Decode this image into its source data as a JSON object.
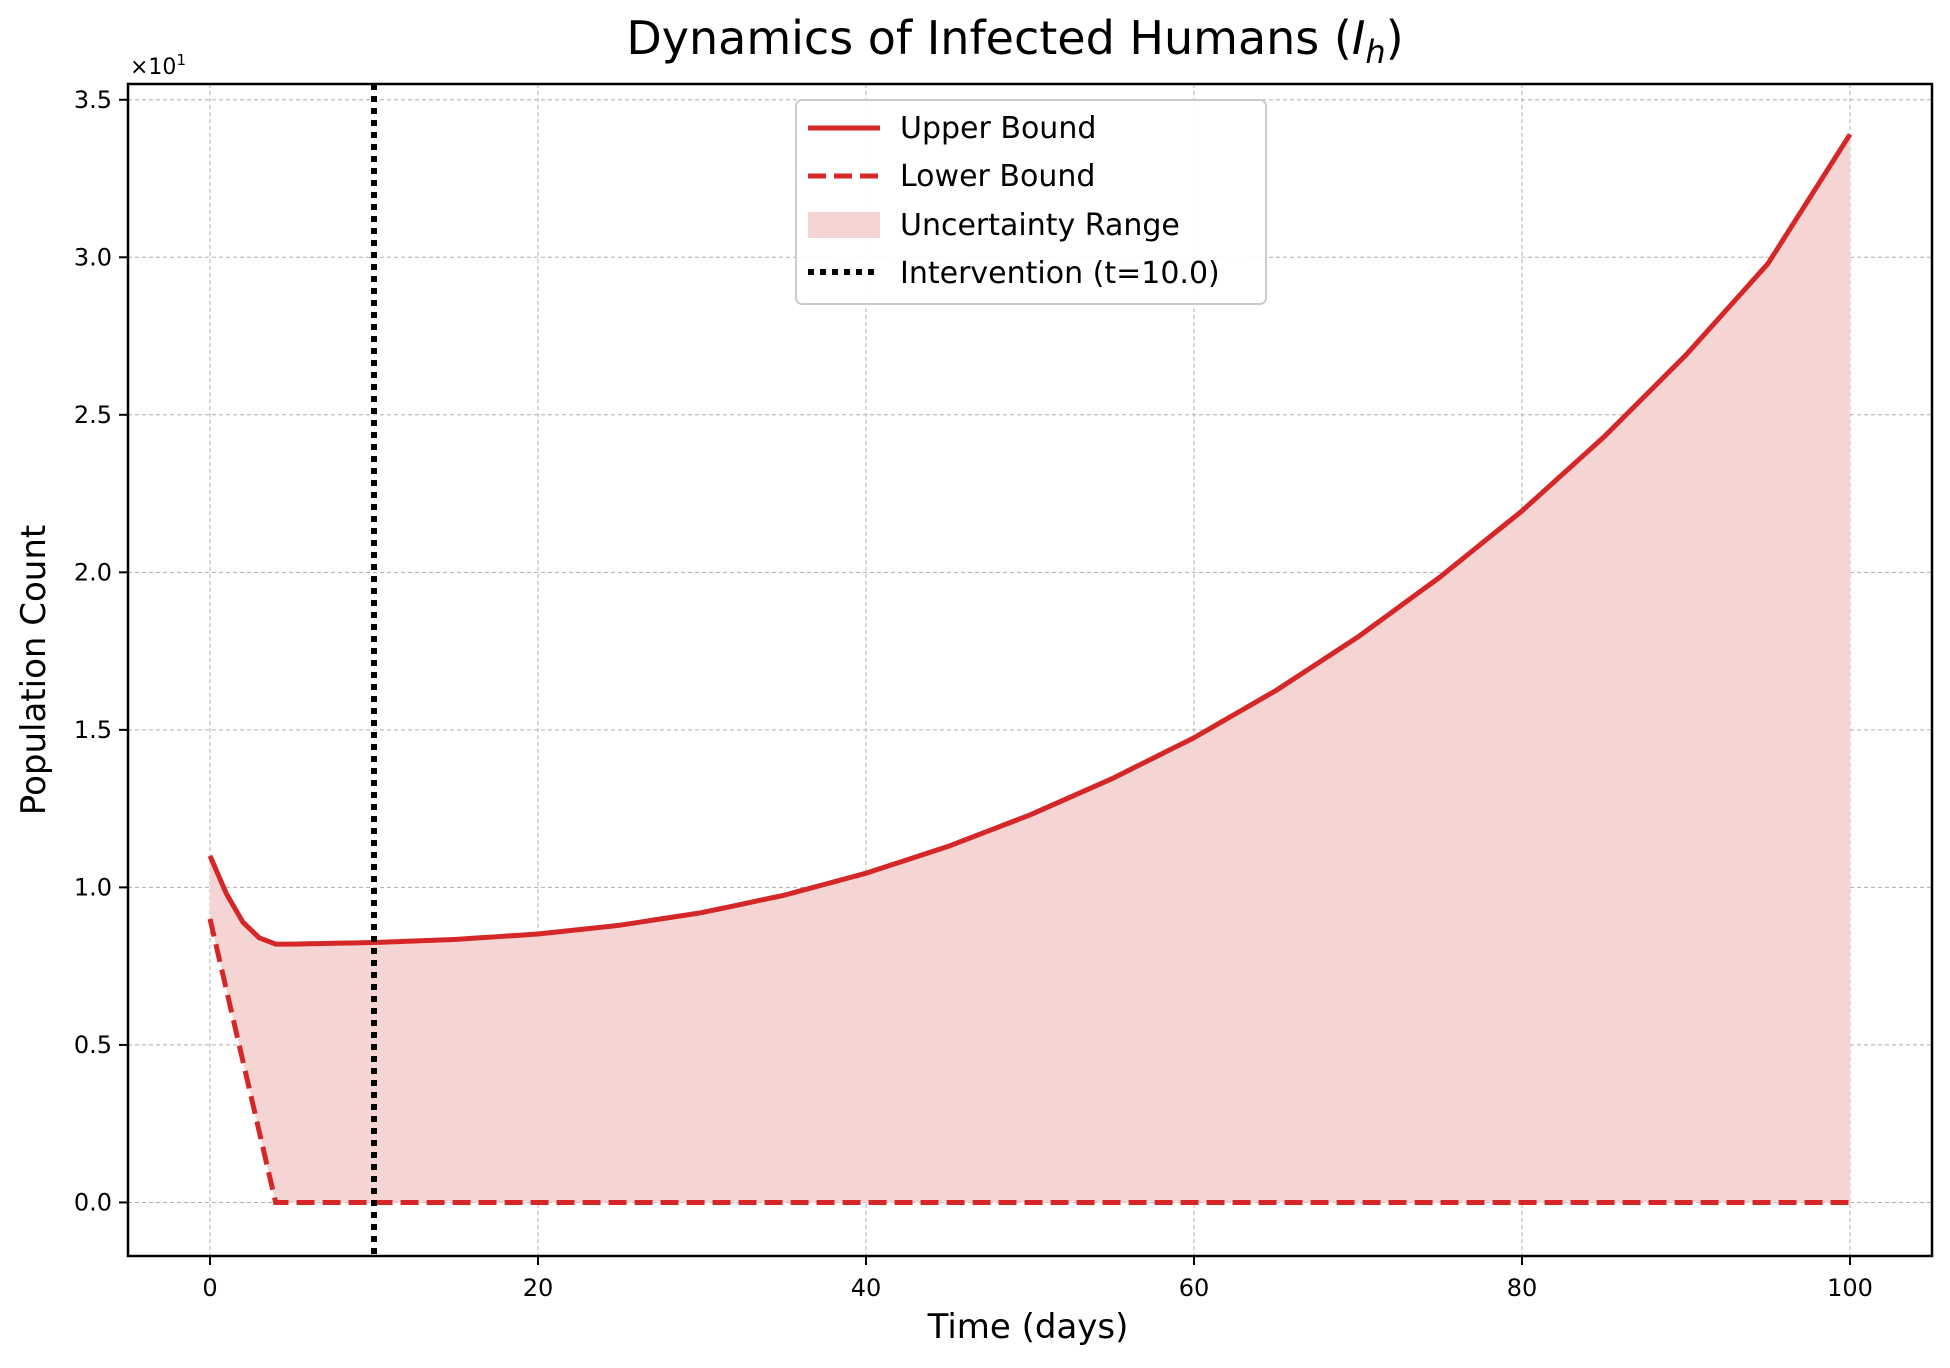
{
  "chart_data": {
    "type": "line",
    "title": "Dynamics of Infected Humans (",
    "title_symbol": "I",
    "title_subscript": "h",
    "title_close": ")",
    "xlabel": "Time (days)",
    "ylabel": "Population Count",
    "y_offset_label_base": "×10",
    "y_offset_label_exp": "1",
    "xlim": [
      -5,
      105
    ],
    "ylim": [
      -0.17,
      3.55
    ],
    "xticks": [
      0,
      20,
      40,
      60,
      80,
      100
    ],
    "xtick_labels": [
      "0",
      "20",
      "40",
      "60",
      "80",
      "100"
    ],
    "yticks": [
      0.0,
      0.5,
      1.0,
      1.5,
      2.0,
      2.5,
      3.0,
      3.5
    ],
    "ytick_labels": [
      "0.0",
      "0.5",
      "1.0",
      "1.5",
      "2.0",
      "2.5",
      "3.0",
      "3.5"
    ],
    "grid": true,
    "legend_position": "top-center",
    "series": [
      {
        "name": "Upper Bound",
        "style": "solid",
        "color": "#d62728",
        "x": [
          0,
          1,
          2,
          3,
          4,
          5,
          10,
          15,
          20,
          25,
          30,
          35,
          40,
          45,
          50,
          55,
          60,
          65,
          70,
          75,
          80,
          85,
          90,
          95,
          100
        ],
        "y": [
          1.1,
          0.98,
          0.89,
          0.84,
          0.82,
          0.82,
          0.825,
          0.835,
          0.852,
          0.88,
          0.92,
          0.975,
          1.045,
          1.13,
          1.23,
          1.345,
          1.475,
          1.625,
          1.795,
          1.985,
          2.195,
          2.43,
          2.69,
          2.98,
          3.39
        ]
      },
      {
        "name": "Lower Bound",
        "style": "dashed",
        "color": "#d62728",
        "x": [
          0,
          4,
          100
        ],
        "y": [
          0.9,
          0.0,
          0.0
        ]
      }
    ],
    "fill": {
      "name": "Uncertainty Range",
      "color": "#f5d4d4"
    },
    "vline": {
      "name": "Intervention (t=10.0)",
      "x": 10,
      "color": "#000000",
      "style": "dotted"
    }
  }
}
